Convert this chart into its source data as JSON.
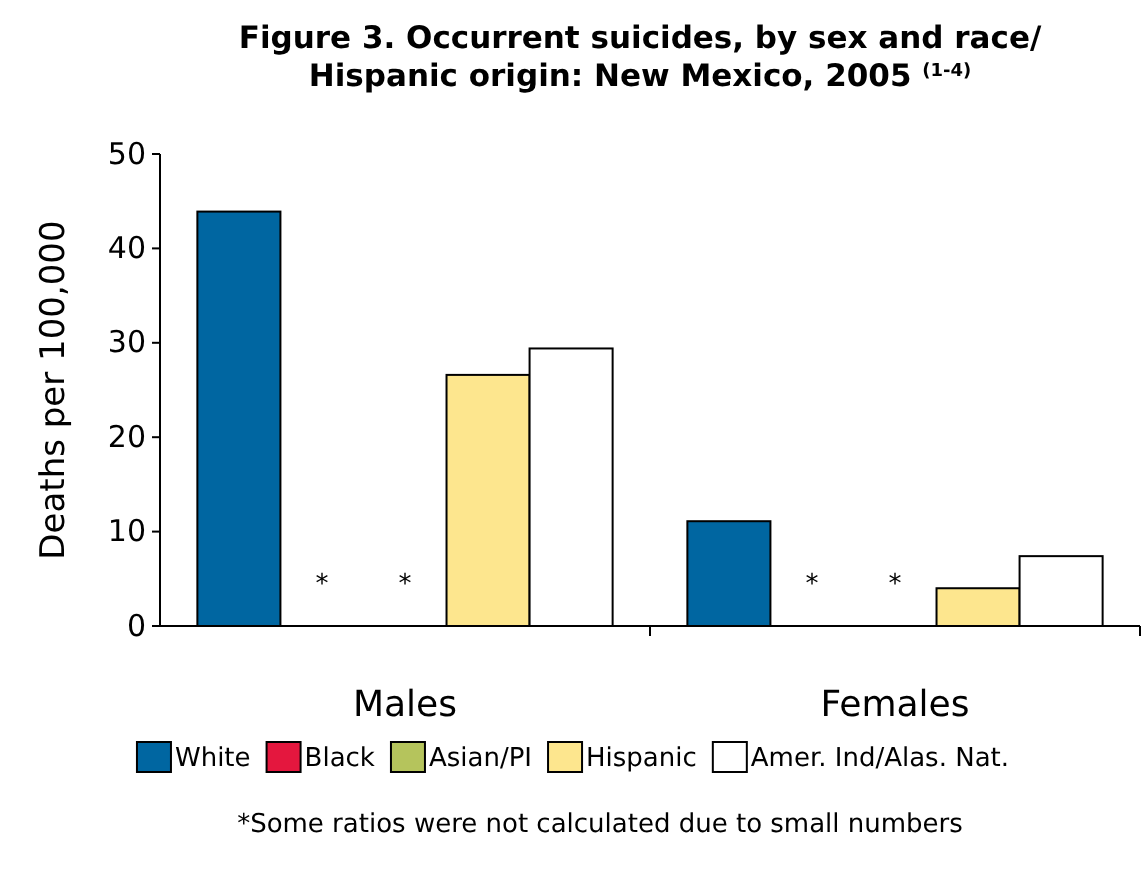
{
  "chart_data": {
    "type": "bar",
    "title": "Figure 3. Occurrent suicides, by sex and race/\nHispanic origin: New Mexico, 2005 $^{(1-4)}$",
    "ylabel": "Deaths per 100,000",
    "categories": [
      "Males",
      "Females"
    ],
    "series": [
      {
        "name": "White",
        "color": "#0066a1",
        "values": [
          43.9,
          11.1
        ]
      },
      {
        "name": "Black",
        "color": "#e4173e",
        "values": [
          null,
          null
        ],
        "value_labels": [
          "*",
          "*"
        ]
      },
      {
        "name": "Asian/PI",
        "color": "#b5c45c",
        "values": [
          null,
          null
        ],
        "value_labels": [
          "*",
          "*"
        ]
      },
      {
        "name": "Hispanic",
        "color": "#fde68e",
        "values": [
          26.6,
          4.0
        ]
      },
      {
        "name": "Amer. Ind/Alas. Nat.",
        "color": "#ffffff",
        "values": [
          29.4,
          7.4
        ]
      }
    ],
    "ylim": [
      0,
      50
    ],
    "yticks": [
      0,
      10,
      20,
      30,
      40,
      50
    ],
    "grid": false,
    "legend": "bottom",
    "annotations": [
      "*Some ratios were not calculated due to small numbers"
    ]
  }
}
